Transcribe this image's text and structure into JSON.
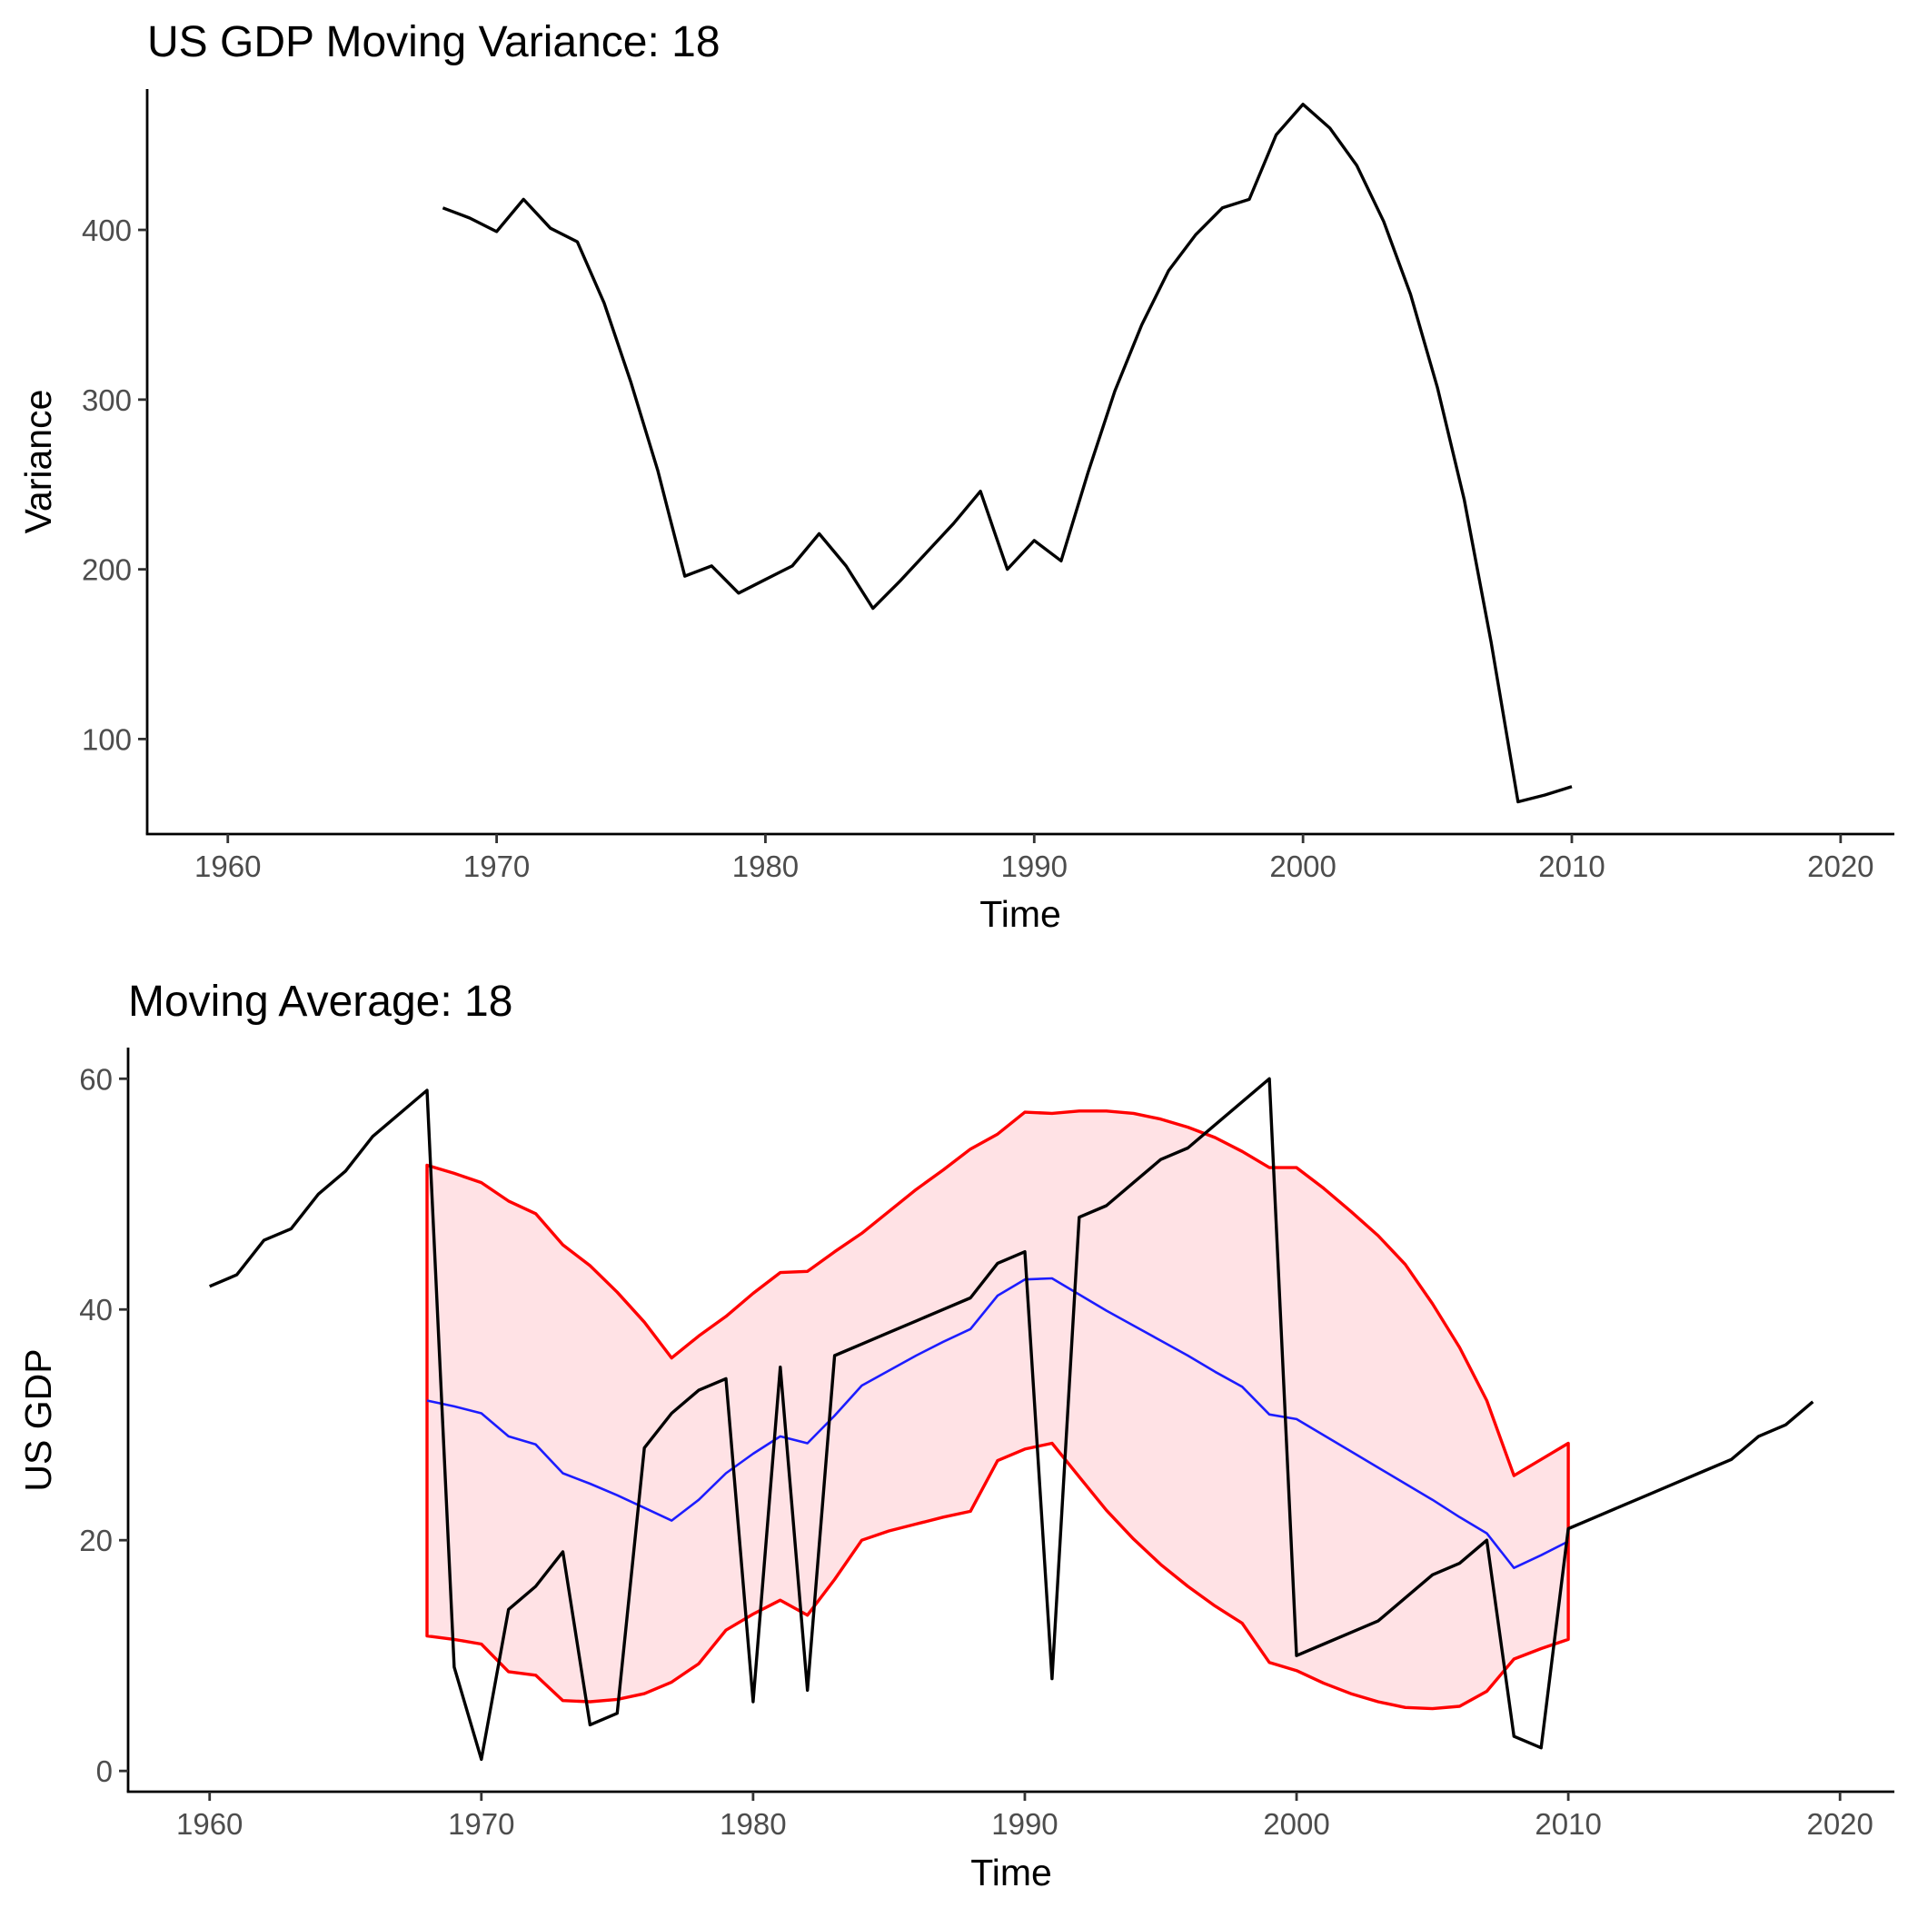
{
  "colors": {
    "gdp_line": "#000000",
    "variance_line": "#000000",
    "moving_average": "#1c1cff",
    "band_line": "#ff0000",
    "band_fill": "#ffe2e5"
  },
  "chart_data": [
    {
      "type": "line",
      "title": "US GDP Moving Variance: 18",
      "xlabel": "Time",
      "ylabel": "Variance",
      "xlim": [
        1957,
        2022
      ],
      "ylim": [
        44,
        483
      ],
      "grid": false,
      "x_ticks": [
        1960,
        1970,
        1980,
        1990,
        2000,
        2010,
        2020
      ],
      "y_ticks": [
        100,
        200,
        300,
        400
      ],
      "series": [
        {
          "color": "#000000",
          "x": [
            1968,
            1969,
            1970,
            1971,
            1972,
            1973,
            1974,
            1975,
            1976,
            1977,
            1978,
            1979,
            1980,
            1981,
            1982,
            1983,
            1984,
            1985,
            1986,
            1987,
            1988,
            1989,
            1990,
            1991,
            1992,
            1993,
            1994,
            1995,
            1996,
            1997,
            1998,
            1999,
            2000,
            2001,
            2002,
            2003,
            2004,
            2005,
            2006,
            2007,
            2008,
            2009,
            2010
          ],
          "y": [
            413,
            407,
            399,
            418,
            401,
            393,
            357,
            310,
            258,
            196,
            202,
            186,
            194,
            202,
            221,
            202,
            177,
            193,
            210,
            227,
            246,
            200,
            217,
            205,
            257,
            305,
            344,
            376,
            397,
            413,
            418,
            456,
            474,
            460,
            438,
            405,
            362,
            307,
            241,
            157,
            63,
            67,
            72
          ]
        }
      ]
    },
    {
      "type": "line",
      "title": "Moving Average: 18",
      "xlabel": "Time",
      "ylabel": "US GDP",
      "xlim": [
        1957,
        2022
      ],
      "ylim": [
        -1.8,
        62.7
      ],
      "grid": false,
      "x_ticks": [
        1960,
        1970,
        1980,
        1990,
        2000,
        2010,
        2020
      ],
      "y_ticks": [
        0,
        20,
        40,
        60
      ],
      "x": [
        1960,
        1961,
        1962,
        1963,
        1964,
        1965,
        1966,
        1967,
        1968,
        1969,
        1970,
        1971,
        1972,
        1973,
        1974,
        1975,
        1976,
        1977,
        1978,
        1979,
        1980,
        1981,
        1982,
        1983,
        1984,
        1985,
        1986,
        1987,
        1988,
        1989,
        1990,
        1991,
        1992,
        1993,
        1994,
        1995,
        1996,
        1997,
        1998,
        1999,
        2000,
        2001,
        2002,
        2003,
        2004,
        2005,
        2006,
        2007,
        2008,
        2009,
        2010,
        2011,
        2012,
        2013,
        2014,
        2015,
        2016,
        2017,
        2018,
        2019
      ],
      "series": [
        {
          "color": "#000000",
          "y": [
            42,
            43,
            46,
            47,
            50,
            52,
            55,
            57,
            59,
            9,
            1,
            14,
            16,
            19,
            4,
            5,
            28,
            31,
            33,
            34,
            6,
            35,
            7,
            36,
            37,
            38,
            39,
            40,
            41,
            44,
            45,
            8,
            48,
            49,
            51,
            53,
            54,
            56,
            58,
            60,
            10,
            11,
            12,
            13,
            15,
            17,
            18,
            20,
            3,
            2,
            21,
            22,
            23,
            24,
            25,
            26,
            27,
            29,
            30,
            32
          ]
        },
        {
          "color": "#1c1cff",
          "x": [
            1968,
            1969,
            1970,
            1971,
            1972,
            1973,
            1974,
            1975,
            1976,
            1977,
            1978,
            1979,
            1980,
            1981,
            1982,
            1983,
            1984,
            1985,
            1986,
            1987,
            1988,
            1989,
            1990,
            1991,
            1992,
            1993,
            1994,
            1995,
            1996,
            1997,
            1998,
            1999,
            2000,
            2001,
            2002,
            2003,
            2004,
            2005,
            2006,
            2007,
            2008,
            2009,
            2010
          ],
          "y": [
            32.1,
            31.6,
            31.0,
            29.0,
            28.3,
            25.8,
            24.9,
            23.9,
            22.8,
            21.7,
            23.5,
            25.8,
            27.5,
            29.0,
            28.4,
            30.8,
            33.4,
            34.7,
            36.0,
            37.2,
            38.3,
            41.2,
            42.6,
            42.7,
            41.3,
            39.9,
            38.6,
            37.3,
            36.0,
            34.6,
            33.3,
            30.9,
            30.5,
            29.1,
            27.7,
            26.3,
            24.9,
            23.5,
            22.0,
            20.6,
            17.6,
            18.7,
            19.9
          ]
        },
        {
          "name": "upper band",
          "color": "#ff0000",
          "x": [
            1968,
            1969,
            1970,
            1971,
            1972,
            1973,
            1974,
            1975,
            1976,
            1977,
            1978,
            1979,
            1980,
            1981,
            1982,
            1983,
            1984,
            1985,
            1986,
            1987,
            1988,
            1989,
            1990,
            1991,
            1992,
            1993,
            1994,
            1995,
            1996,
            1997,
            1998,
            1999,
            2000,
            2001,
            2002,
            2003,
            2004,
            2005,
            2006,
            2007,
            2008,
            2009,
            2010
          ],
          "y": [
            52.5,
            51.8,
            51.0,
            49.4,
            48.3,
            45.6,
            43.8,
            41.5,
            38.9,
            35.8,
            37.7,
            39.4,
            41.4,
            43.2,
            43.3,
            45.0,
            46.6,
            48.5,
            50.4,
            52.1,
            53.9,
            55.2,
            57.1,
            57.0,
            57.2,
            57.2,
            57.0,
            56.5,
            55.8,
            54.9,
            53.7,
            52.3,
            52.3,
            50.5,
            48.5,
            46.4,
            43.9,
            40.5,
            36.7,
            32.1,
            25.6,
            27.0,
            28.4
          ]
        },
        {
          "name": "lower band",
          "color": "#ff0000",
          "x": [
            1968,
            1969,
            1970,
            1971,
            1972,
            1973,
            1974,
            1975,
            1976,
            1977,
            1978,
            1979,
            1980,
            1981,
            1982,
            1983,
            1984,
            1985,
            1986,
            1987,
            1988,
            1989,
            1990,
            1991,
            1992,
            1993,
            1994,
            1995,
            1996,
            1997,
            1998,
            1999,
            2000,
            2001,
            2002,
            2003,
            2004,
            2005,
            2006,
            2007,
            2008,
            2009,
            2010
          ],
          "y": [
            11.7,
            11.4,
            11.0,
            8.6,
            8.3,
            6.1,
            6.0,
            6.2,
            6.7,
            7.7,
            9.3,
            12.2,
            13.6,
            14.8,
            13.5,
            16.6,
            20.0,
            20.8,
            21.4,
            22.0,
            22.5,
            26.9,
            27.9,
            28.4,
            25.5,
            22.6,
            20.1,
            17.9,
            16.0,
            14.3,
            12.8,
            9.4,
            8.7,
            7.6,
            6.7,
            6.0,
            5.5,
            5.4,
            5.6,
            6.9,
            9.7,
            10.6,
            11.4
          ]
        }
      ]
    }
  ]
}
